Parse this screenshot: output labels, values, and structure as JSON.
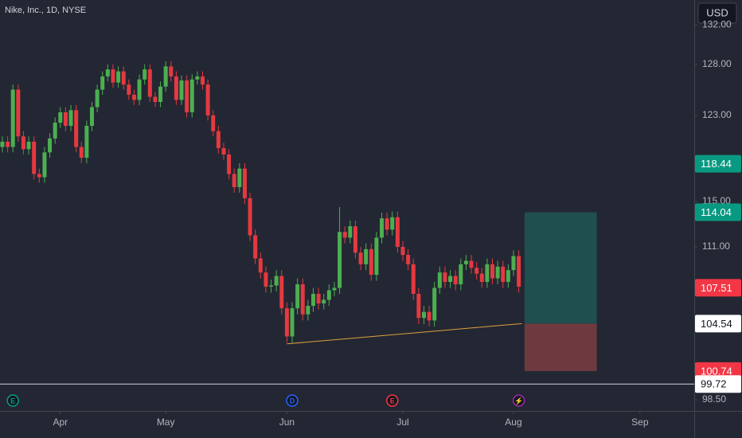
{
  "chart_data": {
    "type": "candlestick",
    "title": "Nike, Inc., 1D, NYSE",
    "currency": "USD",
    "log_scale": true,
    "ylim": [
      97.65,
      134.6
    ],
    "yticks": [
      {
        "value": 132,
        "label": "132.00"
      },
      {
        "value": 128,
        "label": "128.00"
      },
      {
        "value": 123,
        "label": "123.00"
      },
      {
        "value": 115,
        "label": "115.00"
      },
      {
        "value": 111,
        "label": "111.00"
      },
      {
        "value": 98.5,
        "label": "98.50"
      }
    ],
    "xlim": [
      -0.45,
      131.3
    ],
    "xticks": [
      {
        "value": 11,
        "label": "Apr"
      },
      {
        "value": 31,
        "label": "May"
      },
      {
        "value": 54,
        "label": "Jun"
      },
      {
        "value": 76,
        "label": "Jul"
      },
      {
        "value": 97,
        "label": "Aug"
      },
      {
        "value": 121,
        "label": "Sep"
      }
    ],
    "up_color": "#4caf50",
    "down_color": "#e53940",
    "open": [
      120,
      120.5,
      120,
      125.5,
      121,
      119.8,
      120.5,
      117.5,
      117.2,
      119.5,
      120.8,
      122.3,
      123.3,
      122,
      123.5,
      120,
      119,
      122,
      123.8,
      125.5,
      126.8,
      127.5,
      126.2,
      127.3,
      126,
      125,
      124.5,
      126.5,
      127.5,
      124.8,
      124.3,
      125.8,
      127.8,
      126.8,
      124.5,
      126.4,
      123.3,
      126.5,
      126.8,
      126,
      123,
      121.5,
      119.9,
      119.3,
      117.5,
      116.3,
      118,
      115.3,
      112,
      110,
      108.8,
      107.6,
      107.7,
      108.5,
      105.8,
      103.5,
      105.8,
      107.8,
      105.3,
      106,
      107,
      106.2,
      106.5,
      107.3,
      107.5,
      112.3,
      111.8,
      112.8,
      110.5,
      109.5,
      110.8,
      108.6,
      111.8,
      113.5,
      112.5,
      113.6,
      111,
      110.3,
      109.5,
      107,
      105,
      105.5,
      104.8,
      107.5,
      108.8,
      108,
      108.5,
      107.8,
      109.5,
      109.8,
      109.2,
      108.7,
      108,
      109.5,
      108.3,
      109.3,
      108,
      109,
      110.2
    ],
    "high": [
      121,
      121,
      126,
      126,
      121.5,
      121,
      121,
      118,
      120,
      121.3,
      122.8,
      123.8,
      123.8,
      124,
      124,
      120.5,
      122.5,
      124.3,
      126,
      127.3,
      128,
      128,
      127.8,
      127.8,
      126.5,
      125.5,
      127,
      128,
      128,
      125.3,
      126.3,
      128.3,
      128.3,
      127.3,
      126.9,
      126.9,
      127,
      127.3,
      127.3,
      126.5,
      123.5,
      122,
      120.4,
      119.8,
      118,
      118.5,
      118.5,
      115.8,
      112.5,
      110.5,
      109.3,
      108.2,
      109,
      109,
      106.3,
      106.3,
      108.3,
      108.3,
      106.5,
      107.5,
      107.5,
      107,
      107.8,
      108,
      114.5,
      112.8,
      113.3,
      113.3,
      111,
      111.3,
      111.3,
      112.3,
      114,
      114,
      114.1,
      114.1,
      111.5,
      110.8,
      110,
      107.5,
      106,
      106,
      108,
      109.3,
      109.3,
      109,
      109,
      110,
      110.3,
      110.3,
      109.7,
      109.2,
      110,
      110,
      109.8,
      109.8,
      109.5,
      110.7,
      110.7
    ],
    "low": [
      119.5,
      119.5,
      119.5,
      120.5,
      119.3,
      119.3,
      117,
      116.7,
      116.7,
      119,
      120.3,
      121.8,
      121.5,
      121.5,
      119.5,
      118.5,
      118.5,
      121.5,
      123.3,
      125,
      126.3,
      125.7,
      125.7,
      125.5,
      124.5,
      124,
      124,
      126,
      124.3,
      123.8,
      123.8,
      125.3,
      126.3,
      124,
      124,
      122.8,
      122.8,
      126,
      125.5,
      122.5,
      121,
      119.4,
      118.8,
      117,
      115.8,
      115.8,
      114.8,
      111.5,
      109.5,
      108.3,
      107.1,
      107.1,
      107.2,
      105.3,
      103,
      103,
      105.3,
      104.8,
      104.8,
      105.5,
      105.7,
      105.7,
      106,
      106.8,
      107,
      111.3,
      111.3,
      110,
      109,
      109,
      108.1,
      108.1,
      111.3,
      112,
      112,
      110.5,
      109.8,
      109,
      106.5,
      104.5,
      104.5,
      104.3,
      104.3,
      107,
      107.5,
      107.5,
      107.3,
      107.3,
      109,
      108.7,
      108.2,
      107.5,
      107.5,
      107.8,
      107.8,
      107.5,
      107.5,
      108.5,
      107.1
    ],
    "close": [
      120.5,
      120,
      125.5,
      121,
      119.8,
      120.5,
      117.5,
      117.2,
      119.5,
      120.8,
      122.3,
      123.3,
      122,
      123.5,
      120,
      119,
      122,
      123.8,
      125.5,
      126.8,
      127.5,
      126.2,
      127.3,
      126,
      125,
      124.5,
      126.5,
      127.5,
      124.8,
      124.3,
      125.8,
      127.8,
      126.8,
      124.5,
      126.4,
      123.3,
      126.5,
      126.8,
      126,
      123,
      121.5,
      119.9,
      119.3,
      117.5,
      116.3,
      118,
      115.3,
      112,
      110,
      108.8,
      107.6,
      107.7,
      108.5,
      105.8,
      103.5,
      105.8,
      107.8,
      105.3,
      106,
      107,
      106.2,
      106.5,
      107.3,
      107.5,
      112.3,
      111.8,
      112.8,
      110.5,
      109.5,
      110.8,
      108.6,
      111.8,
      113.5,
      112.5,
      113.6,
      111,
      110.3,
      109.5,
      107,
      105,
      105.5,
      104.8,
      107.5,
      108.8,
      108,
      108.5,
      107.8,
      109.5,
      109.8,
      109.2,
      108.7,
      108,
      109.5,
      108.3,
      109.3,
      108,
      109,
      110.2,
      107.6
    ],
    "trendline": {
      "x": [
        54,
        98.6
      ],
      "y": [
        102.9,
        104.54
      ],
      "color": "#e0a040"
    },
    "position": {
      "x": [
        99.1,
        112.8
      ],
      "target": 114.04,
      "entry": 104.54,
      "stop": 100.74,
      "profit_color": "#1f4f4f",
      "loss_color": "#6e3a40"
    },
    "price_labels": [
      {
        "value": 118.44,
        "label": "118.44",
        "color": "#089981",
        "text_color": "#ffffff"
      },
      {
        "value": 114.04,
        "label": "114.04",
        "color": "#089981",
        "text_color": "#ffffff"
      },
      {
        "value": 107.51,
        "label": "107.51",
        "color": "#f23645",
        "text_color": "#ffffff"
      },
      {
        "value": 104.54,
        "label": "104.54",
        "color": "#ffffff",
        "text_color": "#131722"
      },
      {
        "value": 100.74,
        "label": "100.74",
        "color": "#f23645",
        "text_color": "#ffffff"
      },
      {
        "value": 99.72,
        "label": "99.72",
        "color": "#ffffff",
        "text_color": "#131722"
      }
    ],
    "events": [
      {
        "x": 2,
        "label": "E",
        "color": "#089981"
      },
      {
        "x": 55,
        "label": "D",
        "color": "#2962ff"
      },
      {
        "x": 74,
        "label": "E",
        "color": "#f23645"
      },
      {
        "x": 98,
        "label": "⚡",
        "color": "#9c27b0"
      }
    ]
  }
}
